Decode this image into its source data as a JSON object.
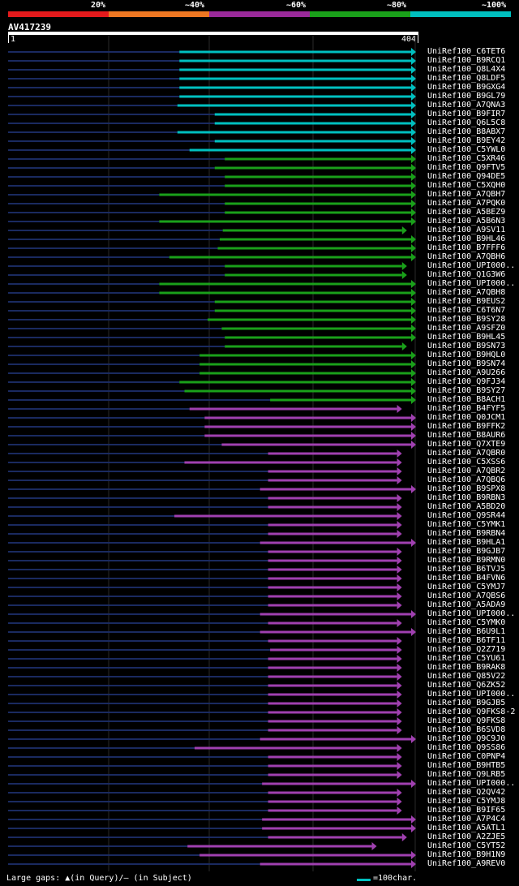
{
  "legend": {
    "labels": [
      "20%",
      "~40%",
      "~60%",
      "~80%",
      "~100%"
    ],
    "colors": [
      "#e41a1c",
      "#ee7722",
      "#9a2a9a",
      "#1aa01a",
      "#00c0c0"
    ]
  },
  "query": {
    "name": "AV417239",
    "start": "1",
    "end": "404",
    "length": 404
  },
  "footer": {
    "gaps_text": "Large gaps: ▲(in Query)/– (in Subject)",
    "scale_text": "=100char."
  },
  "hits": [
    {
      "name": "UniRef100_C6TET6",
      "color": "cyan",
      "start": 170,
      "end": 404,
      "arrow": true
    },
    {
      "name": "UniRef100_B9RCQ1",
      "color": "cyan",
      "start": 170,
      "end": 404,
      "arrow": true
    },
    {
      "name": "UniRef100_Q8L4X4",
      "color": "cyan",
      "start": 170,
      "end": 404,
      "arrow": true
    },
    {
      "name": "UniRef100_Q8LDF5",
      "color": "cyan",
      "start": 170,
      "end": 404,
      "arrow": true
    },
    {
      "name": "UniRef100_B9GXG4",
      "color": "cyan",
      "start": 170,
      "end": 404,
      "arrow": true
    },
    {
      "name": "UniRef100_B9GL79",
      "color": "cyan",
      "start": 170,
      "end": 404,
      "arrow": true
    },
    {
      "name": "UniRef100_A7QNA3",
      "color": "cyan",
      "start": 168,
      "end": 404,
      "arrow": true
    },
    {
      "name": "UniRef100_B9FIR7",
      "color": "cyan",
      "start": 205,
      "end": 404,
      "arrow": true
    },
    {
      "name": "UniRef100_Q6L5C8",
      "color": "cyan",
      "start": 205,
      "end": 404,
      "arrow": true
    },
    {
      "name": "UniRef100_B8ABX7",
      "color": "cyan",
      "start": 168,
      "end": 404,
      "arrow": true
    },
    {
      "name": "UniRef100_B9EY42",
      "color": "cyan",
      "start": 205,
      "end": 404,
      "arrow": true
    },
    {
      "name": "UniRef100_C5YWL0",
      "color": "cyan",
      "start": 180,
      "end": 404,
      "arrow": true
    },
    {
      "name": "UniRef100_C5XR46",
      "color": "green",
      "start": 215,
      "end": 404,
      "arrow": true
    },
    {
      "name": "UniRef100_Q9FTV5",
      "color": "green",
      "start": 205,
      "end": 404,
      "arrow": true
    },
    {
      "name": "UniRef100_Q94DE5",
      "color": "green",
      "start": 215,
      "end": 404,
      "arrow": true
    },
    {
      "name": "UniRef100_C5XQH0",
      "color": "green",
      "start": 215,
      "end": 404,
      "arrow": true
    },
    {
      "name": "UniRef100_A7QBH7",
      "color": "green",
      "start": 150,
      "end": 404,
      "arrow": true
    },
    {
      "name": "UniRef100_A7PQK0",
      "color": "green",
      "start": 215,
      "end": 404,
      "arrow": true
    },
    {
      "name": "UniRef100_A5BEZ9",
      "color": "green",
      "start": 215,
      "end": 404,
      "arrow": true
    },
    {
      "name": "UniRef100_A5B6N3",
      "color": "green",
      "start": 150,
      "end": 404,
      "arrow": true
    },
    {
      "name": "UniRef100_A9SV11",
      "color": "green",
      "start": 213,
      "end": 395,
      "arrow": true
    },
    {
      "name": "UniRef100_B9HL46",
      "color": "green",
      "start": 210,
      "end": 404,
      "arrow": true
    },
    {
      "name": "UniRef100_B7FFF6",
      "color": "green",
      "start": 208,
      "end": 404,
      "arrow": true
    },
    {
      "name": "UniRef100_A7QBH6",
      "color": "green",
      "start": 160,
      "end": 404,
      "arrow": true
    },
    {
      "name": "UniRef100_UPI000..",
      "color": "green",
      "start": 215,
      "end": 395,
      "arrow": true
    },
    {
      "name": "UniRef100_Q1G3W6",
      "color": "green",
      "start": 215,
      "end": 395,
      "arrow": true
    },
    {
      "name": "UniRef100_UPI000..",
      "color": "green",
      "start": 150,
      "end": 404,
      "arrow": true
    },
    {
      "name": "UniRef100_A7QBH8",
      "color": "green",
      "start": 150,
      "end": 404,
      "arrow": true
    },
    {
      "name": "UniRef100_B9EUS2",
      "color": "green",
      "start": 205,
      "end": 404,
      "arrow": true
    },
    {
      "name": "UniRef100_C6T6N7",
      "color": "green",
      "start": 205,
      "end": 404,
      "arrow": true
    },
    {
      "name": "UniRef100_B9SY28",
      "color": "green",
      "start": 198,
      "end": 404,
      "arrow": true
    },
    {
      "name": "UniRef100_A9SFZ0",
      "color": "green",
      "start": 212,
      "end": 404,
      "arrow": true
    },
    {
      "name": "UniRef100_B9HL45",
      "color": "green",
      "start": 215,
      "end": 404,
      "arrow": true
    },
    {
      "name": "UniRef100_B9SN73",
      "color": "green",
      "start": 215,
      "end": 395,
      "arrow": true
    },
    {
      "name": "UniRef100_B9HQL0",
      "color": "green",
      "start": 190,
      "end": 404,
      "arrow": true
    },
    {
      "name": "UniRef100_B9SN74",
      "color": "green",
      "start": 190,
      "end": 404,
      "arrow": true
    },
    {
      "name": "UniRef100_A9U266",
      "color": "green",
      "start": 190,
      "end": 404,
      "arrow": true
    },
    {
      "name": "UniRef100_Q9FJ34",
      "color": "green",
      "start": 170,
      "end": 404,
      "arrow": true
    },
    {
      "name": "UniRef100_B9SY27",
      "color": "green",
      "start": 175,
      "end": 404,
      "arrow": true
    },
    {
      "name": "UniRef100_B8ACH1",
      "color": "green",
      "start": 260,
      "end": 404,
      "arrow": true
    },
    {
      "name": "UniRef100_B4FYF5",
      "color": "purple",
      "start": 180,
      "end": 390,
      "arrow": true
    },
    {
      "name": "UniRef100_Q0JCM1",
      "color": "purple",
      "start": 195,
      "end": 404,
      "arrow": true
    },
    {
      "name": "UniRef100_B9FFK2",
      "color": "purple",
      "start": 195,
      "end": 404,
      "arrow": true
    },
    {
      "name": "UniRef100_B8AUR6",
      "color": "purple",
      "start": 195,
      "end": 404,
      "arrow": true
    },
    {
      "name": "UniRef100_Q7XTE9",
      "color": "purple",
      "start": 212,
      "end": 404,
      "arrow": true
    },
    {
      "name": "UniRef100_A7QBR0",
      "color": "purple",
      "start": 258,
      "end": 390,
      "arrow": true
    },
    {
      "name": "UniRef100_C5XSS6",
      "color": "purple",
      "start": 175,
      "end": 390,
      "arrow": true
    },
    {
      "name": "UniRef100_A7QBR2",
      "color": "purple",
      "start": 258,
      "end": 390,
      "arrow": true
    },
    {
      "name": "UniRef100_A7QBQ6",
      "color": "purple",
      "start": 258,
      "end": 390,
      "arrow": true
    },
    {
      "name": "UniRef100_B9SPX8",
      "color": "purple",
      "start": 250,
      "end": 404,
      "arrow": true
    },
    {
      "name": "UniRef100_B9RBN3",
      "color": "purple",
      "start": 258,
      "end": 390,
      "arrow": true
    },
    {
      "name": "UniRef100_A5BD20",
      "color": "purple",
      "start": 258,
      "end": 390,
      "arrow": true
    },
    {
      "name": "UniRef100_Q9SR44",
      "color": "purple",
      "start": 165,
      "end": 390,
      "arrow": true
    },
    {
      "name": "UniRef100_C5YMK1",
      "color": "purple",
      "start": 258,
      "end": 390,
      "arrow": true
    },
    {
      "name": "UniRef100_B9RBN4",
      "color": "purple",
      "start": 258,
      "end": 390,
      "arrow": true
    },
    {
      "name": "UniRef100_B9HLA1",
      "color": "purple",
      "start": 250,
      "end": 404,
      "arrow": true
    },
    {
      "name": "UniRef100_B9GJB7",
      "color": "purple",
      "start": 258,
      "end": 390,
      "arrow": true
    },
    {
      "name": "UniRef100_B9RMN0",
      "color": "purple",
      "start": 258,
      "end": 390,
      "arrow": true
    },
    {
      "name": "UniRef100_B6TVJ5",
      "color": "purple",
      "start": 258,
      "end": 390,
      "arrow": true
    },
    {
      "name": "UniRef100_B4FVN6",
      "color": "purple",
      "start": 258,
      "end": 390,
      "arrow": true
    },
    {
      "name": "UniRef100_C5YMJ7",
      "color": "purple",
      "start": 258,
      "end": 390,
      "arrow": true
    },
    {
      "name": "UniRef100_A7QBS6",
      "color": "purple",
      "start": 258,
      "end": 390,
      "arrow": true
    },
    {
      "name": "UniRef100_A5ADA9",
      "color": "purple",
      "start": 258,
      "end": 390,
      "arrow": true
    },
    {
      "name": "UniRef100_UPI000..",
      "color": "purple",
      "start": 250,
      "end": 404,
      "arrow": true
    },
    {
      "name": "UniRef100_C5YMK0",
      "color": "purple",
      "start": 258,
      "end": 390,
      "arrow": true
    },
    {
      "name": "UniRef100_B6U9L1",
      "color": "purple",
      "start": 250,
      "end": 404,
      "arrow": true
    },
    {
      "name": "UniRef100_B6TF11",
      "color": "purple",
      "start": 258,
      "end": 390,
      "arrow": true
    },
    {
      "name": "UniRef100_Q2Z719",
      "color": "purple",
      "start": 260,
      "end": 390,
      "arrow": true
    },
    {
      "name": "UniRef100_C5YU61",
      "color": "purple",
      "start": 258,
      "end": 390,
      "arrow": true
    },
    {
      "name": "UniRef100_B9RAK8",
      "color": "purple",
      "start": 258,
      "end": 390,
      "arrow": true
    },
    {
      "name": "UniRef100_Q85V22",
      "color": "purple",
      "start": 258,
      "end": 390,
      "arrow": true
    },
    {
      "name": "UniRef100_Q6ZK52",
      "color": "purple",
      "start": 258,
      "end": 390,
      "arrow": true
    },
    {
      "name": "UniRef100_UPI000..",
      "color": "purple",
      "start": 258,
      "end": 390,
      "arrow": true
    },
    {
      "name": "UniRef100_B9GJB5",
      "color": "purple",
      "start": 258,
      "end": 390,
      "arrow": true
    },
    {
      "name": "UniRef100_Q9FKS8-2",
      "color": "purple",
      "start": 258,
      "end": 390,
      "arrow": true
    },
    {
      "name": "UniRef100_Q9FKS8",
      "color": "purple",
      "start": 258,
      "end": 390,
      "arrow": true
    },
    {
      "name": "UniRef100_B6SVD8",
      "color": "purple",
      "start": 258,
      "end": 390,
      "arrow": true
    },
    {
      "name": "UniRef100_Q9C9J0",
      "color": "purple",
      "start": 250,
      "end": 404,
      "arrow": true
    },
    {
      "name": "UniRef100_Q9SS86",
      "color": "purple",
      "start": 185,
      "end": 390,
      "arrow": true
    },
    {
      "name": "UniRef100_C0PNP4",
      "color": "purple",
      "start": 258,
      "end": 390,
      "arrow": true
    },
    {
      "name": "UniRef100_B9HTB5",
      "color": "purple",
      "start": 258,
      "end": 390,
      "arrow": true
    },
    {
      "name": "UniRef100_Q9LRB5",
      "color": "purple",
      "start": 258,
      "end": 390,
      "arrow": true
    },
    {
      "name": "UniRef100_UPI000..",
      "color": "purple",
      "start": 252,
      "end": 404,
      "arrow": true
    },
    {
      "name": "UniRef100_Q2QV42",
      "color": "purple",
      "start": 258,
      "end": 390,
      "arrow": true
    },
    {
      "name": "UniRef100_C5YMJ8",
      "color": "purple",
      "start": 258,
      "end": 390,
      "arrow": true
    },
    {
      "name": "UniRef100_B9IF65",
      "color": "purple",
      "start": 258,
      "end": 390,
      "arrow": true
    },
    {
      "name": "UniRef100_A7P4C4",
      "color": "purple",
      "start": 252,
      "end": 404,
      "arrow": true
    },
    {
      "name": "UniRef100_A5ATL1",
      "color": "purple",
      "start": 252,
      "end": 404,
      "arrow": true
    },
    {
      "name": "UniRef100_A2ZJE5",
      "color": "purple",
      "start": 258,
      "end": 395,
      "arrow": true
    },
    {
      "name": "UniRef100_C5YT52",
      "color": "purple",
      "start": 178,
      "end": 365,
      "arrow": true
    },
    {
      "name": "UniRef100_B9H1N9",
      "color": "purple",
      "start": 190,
      "end": 404,
      "arrow": true
    },
    {
      "name": "UniRef100_A9REV0",
      "color": "purple",
      "start": 250,
      "end": 404,
      "arrow": true
    }
  ]
}
